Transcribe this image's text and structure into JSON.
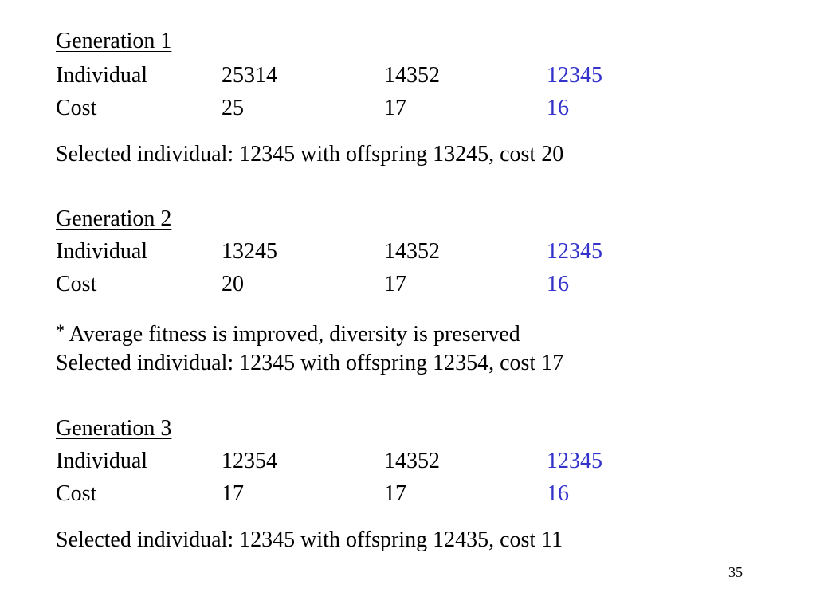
{
  "generations": [
    {
      "heading": "Generation 1",
      "individual_label": "Individual",
      "individuals": [
        "25314",
        "14352",
        "12345"
      ],
      "cost_label": "Cost",
      "costs": [
        "25",
        "17",
        "16"
      ],
      "note": "",
      "selected": "Selected individual: 12345 with offspring 13245, cost 20"
    },
    {
      "heading": "Generation 2",
      "individual_label": "Individual",
      "individuals": [
        "13245",
        "14352",
        "12345"
      ],
      "cost_label": "Cost",
      "costs": [
        "20",
        "17",
        "16"
      ],
      "note_marker": "*",
      "note": " Average fitness is improved, diversity is preserved",
      "selected": "Selected individual: 12345 with offspring 12354, cost 17"
    },
    {
      "heading": "Generation 3",
      "individual_label": "Individual",
      "individuals": [
        "12354",
        "14352",
        "12345"
      ],
      "cost_label": "Cost",
      "costs": [
        "17",
        "17",
        "16"
      ],
      "note": "",
      "selected": "Selected individual: 12345 with offspring 12435, cost 11"
    }
  ],
  "highlight_color": "#3333cc",
  "page_number": "35"
}
